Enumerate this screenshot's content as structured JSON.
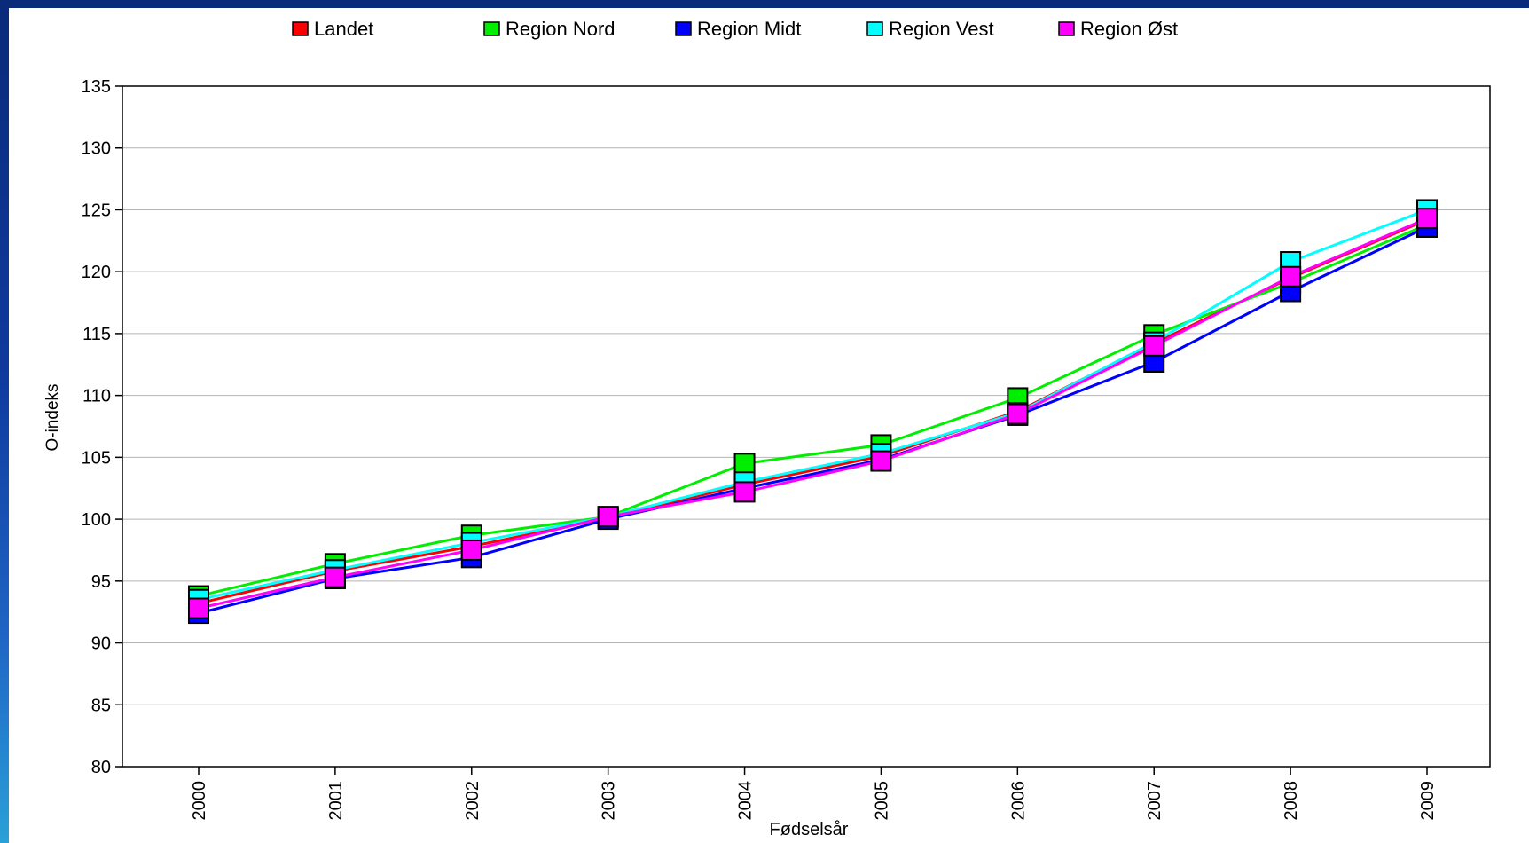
{
  "chart_data": {
    "type": "line",
    "title": "",
    "xlabel": "Fødselsår",
    "ylabel": "O-indeks",
    "categories": [
      "2000",
      "2001",
      "2002",
      "2003",
      "2004",
      "2005",
      "2006",
      "2007",
      "2008",
      "2009"
    ],
    "ylim": [
      80,
      135
    ],
    "yticks": [
      "80",
      "85",
      "90",
      "95",
      "100",
      "105",
      "110",
      "115",
      "120",
      "125",
      "130",
      "135"
    ],
    "grid": "horizontal",
    "legend_position": "top",
    "marker": "square",
    "series": [
      {
        "name": "Landet",
        "color": "#ff0000",
        "values": [
          93.2,
          95.8,
          97.8,
          100.1,
          102.8,
          105.1,
          108.7,
          114.2,
          119.5,
          124.2
        ]
      },
      {
        "name": "Region Nord",
        "color": "#00ee00",
        "values": [
          93.8,
          96.4,
          98.7,
          100.2,
          104.5,
          106.0,
          109.8,
          114.9,
          119.1,
          123.8
        ]
      },
      {
        "name": "Region Midt",
        "color": "#0000ff",
        "values": [
          92.4,
          95.2,
          96.9,
          100.0,
          102.5,
          104.8,
          108.4,
          112.7,
          118.4,
          123.6
        ]
      },
      {
        "name": "Region Vest",
        "color": "#00ffff",
        "values": [
          93.5,
          95.9,
          98.1,
          100.2,
          103.0,
          105.3,
          108.6,
          114.3,
          120.8,
          125.0
        ]
      },
      {
        "name": "Region Øst",
        "color": "#ff00ff",
        "values": [
          92.8,
          95.3,
          97.5,
          100.2,
          102.2,
          104.7,
          108.5,
          114.0,
          119.6,
          124.3
        ]
      }
    ]
  }
}
